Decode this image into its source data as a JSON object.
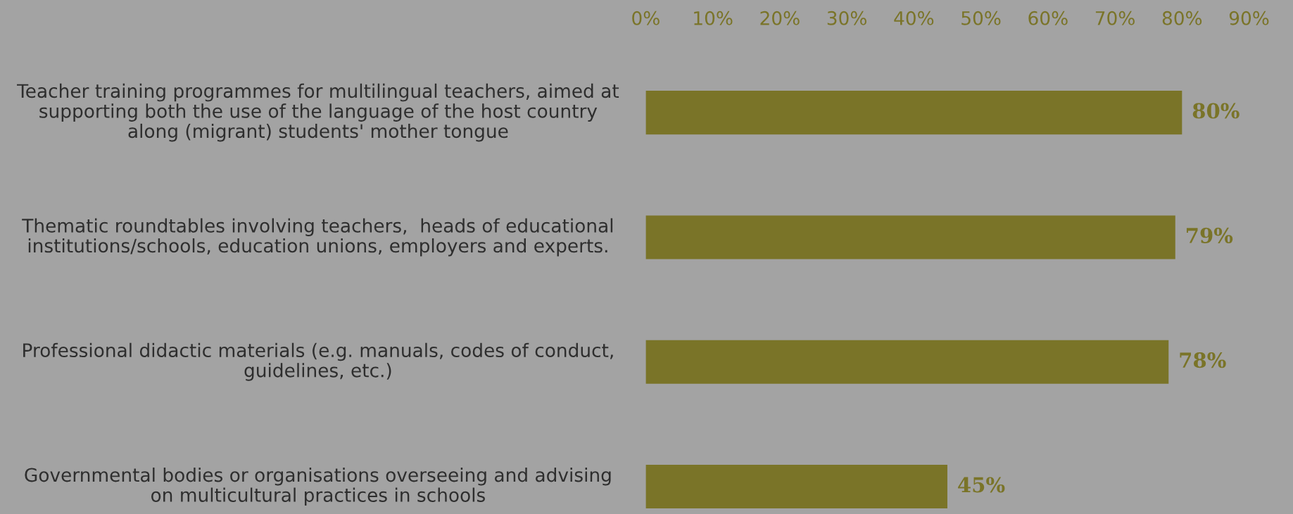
{
  "chart_data": {
    "type": "bar",
    "orientation": "horizontal",
    "categories": [
      "Teacher training programmes for multilingual teachers, aimed at supporting both the use of the language of the host country along (migrant) students' mother tongue",
      "Thematic roundtables involving teachers,  heads of educational institutions/schools, education unions, employers and experts.",
      "Professional didactic materials (e.g. manuals, codes of conduct, guidelines, etc.)",
      "Governmental bodies or organisations overseeing and advising on multicultural practices in schools"
    ],
    "values": [
      80,
      79,
      78,
      45
    ],
    "color": "#7a7428",
    "value_labels": [
      "80%",
      "79%",
      "78%",
      "45%"
    ],
    "xlim": [
      0,
      90
    ],
    "xticks": [
      {
        "value": 0,
        "label": "0%"
      },
      {
        "value": 10,
        "label": "10%"
      },
      {
        "value": 20,
        "label": "20%"
      },
      {
        "value": 30,
        "label": "30%"
      },
      {
        "value": 40,
        "label": "40%"
      },
      {
        "value": 50,
        "label": "50%"
      },
      {
        "value": 60,
        "label": "60%"
      },
      {
        "value": 70,
        "label": "70%"
      },
      {
        "value": 80,
        "label": "80%"
      },
      {
        "value": 90,
        "label": "90%"
      }
    ],
    "grid": false,
    "legend": false
  }
}
